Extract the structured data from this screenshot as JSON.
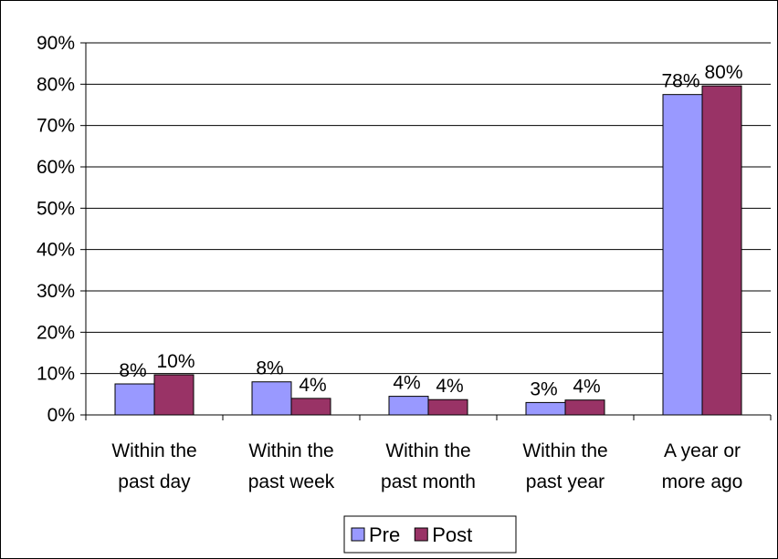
{
  "chart_data": {
    "type": "bar",
    "categories": [
      [
        "Within the",
        "past day"
      ],
      [
        "Within the",
        "past week"
      ],
      [
        "Within the",
        "past month"
      ],
      [
        "Within the",
        "past year"
      ],
      [
        "A year or",
        "more ago"
      ]
    ],
    "series": [
      {
        "name": "Pre",
        "values": [
          7.5,
          8,
          4.5,
          3,
          77.5
        ],
        "labels": [
          "8%",
          "8%",
          "4%",
          "3%",
          "78%"
        ],
        "color": "#9999ff"
      },
      {
        "name": "Post",
        "values": [
          9.7,
          4,
          3.7,
          3.6,
          79.6
        ],
        "labels": [
          "10%",
          "4%",
          "4%",
          "4%",
          "80%"
        ],
        "color": "#993366"
      }
    ],
    "ylim": [
      0,
      90
    ],
    "yticks": [
      0,
      10,
      20,
      30,
      40,
      50,
      60,
      70,
      80,
      90
    ],
    "ytick_labels": [
      "0%",
      "10%",
      "20%",
      "30%",
      "40%",
      "50%",
      "60%",
      "70%",
      "80%",
      "90%"
    ],
    "grid": true,
    "legend_position": "bottom",
    "title": "",
    "xlabel": "",
    "ylabel": ""
  }
}
